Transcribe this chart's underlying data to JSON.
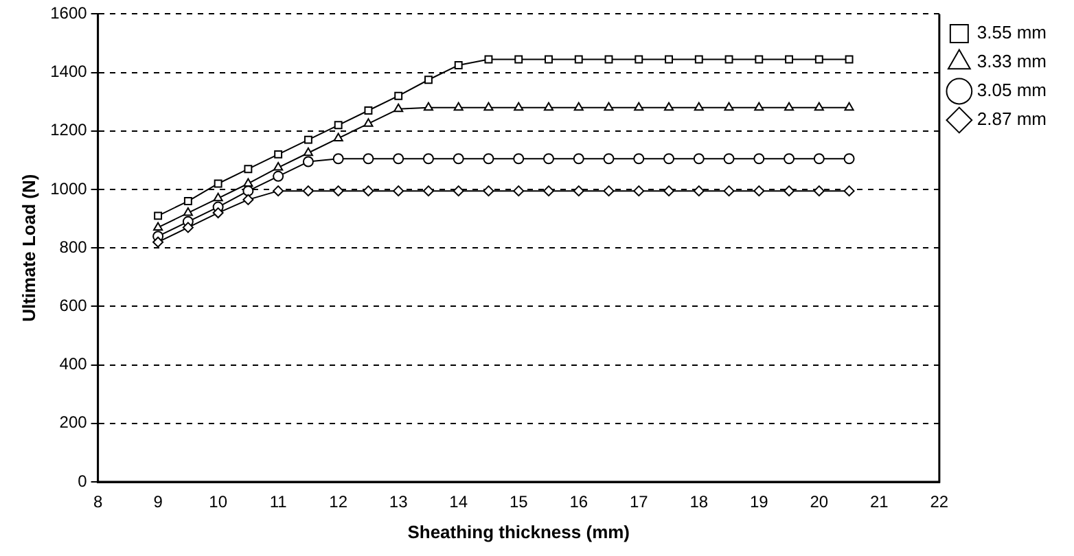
{
  "chart_data": {
    "type": "line",
    "xlabel": "Sheathing thickness (mm)",
    "ylabel": "Ultimate Load (N)",
    "x": [
      9,
      9.5,
      10,
      10.5,
      11,
      11.5,
      12,
      12.5,
      13,
      13.5,
      14,
      14.5,
      15,
      15.5,
      16,
      16.5,
      17,
      17.5,
      18,
      18.5,
      19,
      19.5,
      20,
      20.5
    ],
    "xlim": [
      8,
      22
    ],
    "xticks": [
      8,
      9,
      10,
      11,
      12,
      13,
      14,
      15,
      16,
      17,
      18,
      19,
      20,
      21,
      22
    ],
    "ylim": [
      0,
      1600
    ],
    "yticks": [
      0,
      200,
      400,
      600,
      800,
      1000,
      1200,
      1400,
      1600
    ],
    "grid": "y",
    "legend": "right",
    "line_style": "solid",
    "series": [
      {
        "name": "3.55 mm",
        "color": "#000000",
        "marker": "square",
        "values": [
          910,
          960,
          1020,
          1070,
          1120,
          1170,
          1220,
          1270,
          1320,
          1375,
          1425,
          1445,
          1445,
          1445,
          1445,
          1445,
          1445,
          1445,
          1445,
          1445,
          1445,
          1445,
          1445,
          1445
        ]
      },
      {
        "name": "3.33 mm",
        "color": "#000000",
        "marker": "triangle",
        "values": [
          870,
          920,
          970,
          1020,
          1075,
          1125,
          1175,
          1225,
          1275,
          1280,
          1280,
          1280,
          1280,
          1280,
          1280,
          1280,
          1280,
          1280,
          1280,
          1280,
          1280,
          1280,
          1280,
          1280
        ]
      },
      {
        "name": "3.05 mm",
        "color": "#000000",
        "marker": "circle",
        "values": [
          840,
          890,
          940,
          995,
          1045,
          1095,
          1105,
          1105,
          1105,
          1105,
          1105,
          1105,
          1105,
          1105,
          1105,
          1105,
          1105,
          1105,
          1105,
          1105,
          1105,
          1105,
          1105,
          1105
        ]
      },
      {
        "name": "2.87 mm",
        "color": "#000000",
        "marker": "diamond",
        "values": [
          820,
          870,
          920,
          965,
          995,
          995,
          995,
          995,
          995,
          995,
          995,
          995,
          995,
          995,
          995,
          995,
          995,
          995,
          995,
          995,
          995,
          995,
          995,
          995
        ]
      }
    ]
  }
}
